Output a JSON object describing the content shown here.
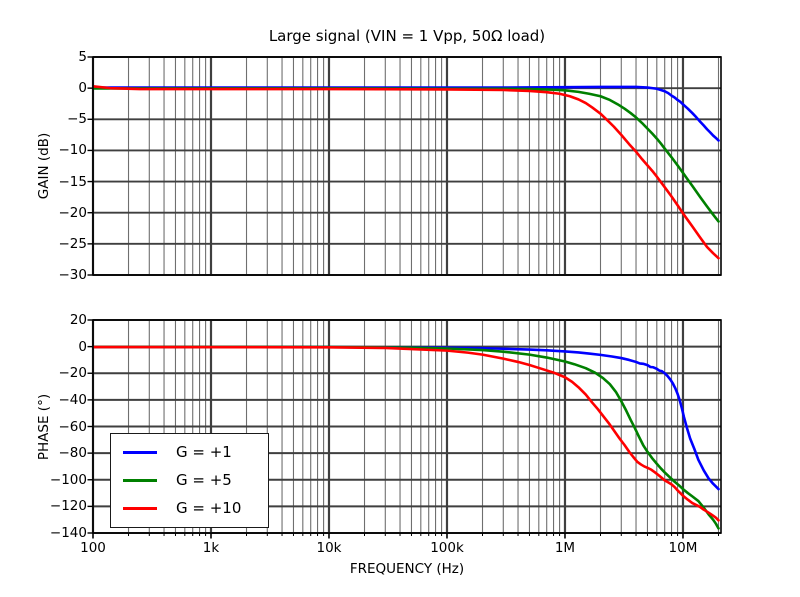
{
  "legend": {
    "position": "lower left",
    "items": [
      {
        "label": "G = +1",
        "color": "#0000ff"
      },
      {
        "label": "G = +5",
        "color": "#008000"
      },
      {
        "label": "G = +10",
        "color": "#ff0000"
      }
    ]
  },
  "colors": {
    "grid_major": "#3f3f3f",
    "grid_minor": "#6f6f6f",
    "frame": "#000000",
    "blue": "#0000ff",
    "green": "#008000",
    "red": "#ff0000"
  },
  "chart_data": [
    {
      "type": "line",
      "title": "Large signal (VIN = 1 Vpp, 50Ω load)",
      "ylabel": "GAIN (dB)",
      "xlabel": "",
      "xscale": "log",
      "grid": true,
      "show_xtick_labels": false,
      "show_xtick_marks": false,
      "xlim": [
        100,
        21000000
      ],
      "ylim": [
        -30,
        5
      ],
      "xticks": [
        {
          "value": 100,
          "label": "100"
        },
        {
          "value": 1000,
          "label": "1k"
        },
        {
          "value": 10000,
          "label": "10k"
        },
        {
          "value": 100000,
          "label": "100k"
        },
        {
          "value": 1000000,
          "label": "1M"
        },
        {
          "value": 10000000,
          "label": "10M"
        }
      ],
      "yticks": [
        {
          "value": 5,
          "label": "5"
        },
        {
          "value": 0,
          "label": "0"
        },
        {
          "value": -5,
          "label": "−5"
        },
        {
          "value": -10,
          "label": "−10"
        },
        {
          "value": -15,
          "label": "−15"
        },
        {
          "value": -20,
          "label": "−20"
        },
        {
          "value": -25,
          "label": "−25"
        },
        {
          "value": -30,
          "label": "−30"
        }
      ],
      "series": [
        {
          "name": "G = +1",
          "color": "#0000ff",
          "points": [
            [
              100,
              0.1
            ],
            [
              1000,
              0.1
            ],
            [
              10000,
              0.1
            ],
            [
              100000,
              0.1
            ],
            [
              300000,
              0.1
            ],
            [
              1000000,
              0.15
            ],
            [
              2000000,
              0.2
            ],
            [
              3000000,
              0.2
            ],
            [
              4000000,
              0.2
            ],
            [
              5000000,
              0.1
            ],
            [
              6000000,
              -0.1
            ],
            [
              6500000,
              -0.3
            ],
            [
              7000000,
              -0.5
            ],
            [
              7500000,
              -0.8
            ],
            [
              8000000,
              -1.2
            ],
            [
              8500000,
              -1.5
            ],
            [
              9000000,
              -1.9
            ],
            [
              9500000,
              -2.2
            ],
            [
              10000000,
              -2.6
            ],
            [
              11000000,
              -3.3
            ],
            [
              12000000,
              -4.0
            ],
            [
              13000000,
              -4.7
            ],
            [
              14000000,
              -5.4
            ],
            [
              15000000,
              -6.0
            ],
            [
              16000000,
              -6.6
            ],
            [
              17000000,
              -7.1
            ],
            [
              18000000,
              -7.6
            ],
            [
              19000000,
              -8.0
            ],
            [
              20000000,
              -8.4
            ]
          ]
        },
        {
          "name": "G = +5",
          "color": "#008000",
          "points": [
            [
              100,
              -0.05
            ],
            [
              1000,
              -0.05
            ],
            [
              10000,
              -0.05
            ],
            [
              100000,
              -0.1
            ],
            [
              300000,
              -0.1
            ],
            [
              500000,
              -0.15
            ],
            [
              800000,
              -0.25
            ],
            [
              1000000,
              -0.35
            ],
            [
              1300000,
              -0.6
            ],
            [
              1600000,
              -0.9
            ],
            [
              2000000,
              -1.3
            ],
            [
              2400000,
              -1.9
            ],
            [
              2800000,
              -2.6
            ],
            [
              3200000,
              -3.3
            ],
            [
              3600000,
              -4.0
            ],
            [
              4000000,
              -4.7
            ],
            [
              4500000,
              -5.6
            ],
            [
              5000000,
              -6.5
            ],
            [
              5500000,
              -7.3
            ],
            [
              6000000,
              -8.1
            ],
            [
              6500000,
              -8.9
            ],
            [
              7000000,
              -9.7
            ],
            [
              8000000,
              -11.1
            ],
            [
              9000000,
              -12.4
            ],
            [
              10000000,
              -13.6
            ],
            [
              11000000,
              -14.7
            ],
            [
              12000000,
              -15.7
            ],
            [
              14000000,
              -17.5
            ],
            [
              16000000,
              -19.0
            ],
            [
              18000000,
              -20.3
            ],
            [
              20000000,
              -21.4
            ]
          ]
        },
        {
          "name": "G = +10",
          "color": "#ff0000",
          "points": [
            [
              100,
              0.3
            ],
            [
              140,
              0
            ],
            [
              250,
              -0.15
            ],
            [
              1000,
              -0.15
            ],
            [
              10000,
              -0.15
            ],
            [
              100000,
              -0.2
            ],
            [
              300000,
              -0.3
            ],
            [
              500000,
              -0.45
            ],
            [
              700000,
              -0.65
            ],
            [
              900000,
              -0.9
            ],
            [
              1100000,
              -1.3
            ],
            [
              1300000,
              -1.8
            ],
            [
              1500000,
              -2.4
            ],
            [
              1700000,
              -3.1
            ],
            [
              2000000,
              -4.1
            ],
            [
              2300000,
              -5.2
            ],
            [
              2600000,
              -6.2
            ],
            [
              3000000,
              -7.5
            ],
            [
              3500000,
              -9.0
            ],
            [
              4000000,
              -10.2
            ],
            [
              4500000,
              -11.4
            ],
            [
              5000000,
              -12.4
            ],
            [
              5500000,
              -13.3
            ],
            [
              6000000,
              -14.2
            ],
            [
              7000000,
              -15.9
            ],
            [
              8000000,
              -17.4
            ],
            [
              9000000,
              -18.8
            ],
            [
              10000000,
              -20.1
            ],
            [
              11000000,
              -21.2
            ],
            [
              12000000,
              -22.2
            ],
            [
              14000000,
              -24.0
            ],
            [
              16000000,
              -25.5
            ],
            [
              18000000,
              -26.5
            ],
            [
              20000000,
              -27.3
            ]
          ]
        }
      ]
    },
    {
      "type": "line",
      "title": "",
      "ylabel": "PHASE (°)",
      "xlabel": "FREQUENCY (Hz)",
      "xscale": "log",
      "grid": true,
      "show_xtick_labels": true,
      "show_xtick_marks": true,
      "xlim": [
        100,
        21000000
      ],
      "ylim": [
        -140,
        20
      ],
      "xticks": [
        {
          "value": 100,
          "label": "100"
        },
        {
          "value": 1000,
          "label": "1k"
        },
        {
          "value": 10000,
          "label": "10k"
        },
        {
          "value": 100000,
          "label": "100k"
        },
        {
          "value": 1000000,
          "label": "1M"
        },
        {
          "value": 10000000,
          "label": "10M"
        }
      ],
      "yticks": [
        {
          "value": 20,
          "label": "20"
        },
        {
          "value": 0,
          "label": "0"
        },
        {
          "value": -20,
          "label": "−20"
        },
        {
          "value": -40,
          "label": "−40"
        },
        {
          "value": -60,
          "label": "−60"
        },
        {
          "value": -80,
          "label": "−80"
        },
        {
          "value": -100,
          "label": "−100"
        },
        {
          "value": -120,
          "label": "−120"
        },
        {
          "value": -140,
          "label": "−140"
        }
      ],
      "series": [
        {
          "name": "G = +1",
          "color": "#0000ff",
          "points": [
            [
              100,
              -0.3
            ],
            [
              1000,
              -0.3
            ],
            [
              10000,
              -0.4
            ],
            [
              50000,
              -0.6
            ],
            [
              100000,
              -0.8
            ],
            [
              200000,
              -1.2
            ],
            [
              300000,
              -1.6
            ],
            [
              500000,
              -2.2
            ],
            [
              700000,
              -2.8
            ],
            [
              1000000,
              -3.6
            ],
            [
              1300000,
              -4.4
            ],
            [
              1600000,
              -5.2
            ],
            [
              2000000,
              -6.2
            ],
            [
              2500000,
              -7.4
            ],
            [
              3000000,
              -8.6
            ],
            [
              3500000,
              -10.0
            ],
            [
              4000000,
              -11.5
            ],
            [
              4300000,
              -12.6
            ],
            [
              4600000,
              -12.9
            ],
            [
              5000000,
              -13.9
            ],
            [
              5300000,
              -15.3
            ],
            [
              5600000,
              -15.5
            ],
            [
              6000000,
              -16.7
            ],
            [
              6300000,
              -18.0
            ],
            [
              6600000,
              -18.4
            ],
            [
              7000000,
              -20.0
            ],
            [
              7400000,
              -22.1
            ],
            [
              7800000,
              -24.6
            ],
            [
              8200000,
              -27.6
            ],
            [
              8600000,
              -31.2
            ],
            [
              9000000,
              -35.5
            ],
            [
              9400000,
              -40.5
            ],
            [
              9800000,
              -46.5
            ],
            [
              10200000,
              -53
            ],
            [
              10800000,
              -61
            ],
            [
              11500000,
              -69
            ],
            [
              12500000,
              -77
            ],
            [
              13500000,
              -85
            ],
            [
              15000000,
              -93
            ],
            [
              16500000,
              -99
            ],
            [
              18000000,
              -103
            ],
            [
              19000000,
              -105
            ],
            [
              20000000,
              -107
            ]
          ]
        },
        {
          "name": "G = +5",
          "color": "#008000",
          "points": [
            [
              100,
              -0.2
            ],
            [
              10000,
              -0.3
            ],
            [
              50000,
              -0.8
            ],
            [
              100000,
              -1.4
            ],
            [
              200000,
              -2.6
            ],
            [
              300000,
              -3.8
            ],
            [
              500000,
              -6.0
            ],
            [
              700000,
              -8.2
            ],
            [
              1000000,
              -11.2
            ],
            [
              1200000,
              -13.2
            ],
            [
              1500000,
              -16.2
            ],
            [
              1800000,
              -19.6
            ],
            [
              2100000,
              -23.6
            ],
            [
              2400000,
              -28.2
            ],
            [
              2700000,
              -34
            ],
            [
              3000000,
              -41
            ],
            [
              3300000,
              -48
            ],
            [
              3600000,
              -55
            ],
            [
              3900000,
              -61
            ],
            [
              4200000,
              -67
            ],
            [
              4600000,
              -74
            ],
            [
              5000000,
              -79
            ],
            [
              5500000,
              -84
            ],
            [
              6000000,
              -88
            ],
            [
              6500000,
              -91.5
            ],
            [
              7000000,
              -94.5
            ],
            [
              7700000,
              -98
            ],
            [
              8500000,
              -101.5
            ],
            [
              9200000,
              -104
            ],
            [
              10000000,
              -107
            ],
            [
              11000000,
              -110
            ],
            [
              12000000,
              -112.5
            ],
            [
              13500000,
              -116
            ],
            [
              15000000,
              -121
            ],
            [
              16500000,
              -126
            ],
            [
              18000000,
              -130
            ],
            [
              19000000,
              -133
            ],
            [
              20000000,
              -136.5
            ]
          ]
        },
        {
          "name": "G = +10",
          "color": "#ff0000",
          "points": [
            [
              100,
              -0.3
            ],
            [
              10000,
              -0.5
            ],
            [
              30000,
              -1.0
            ],
            [
              100000,
              -3.0
            ],
            [
              150000,
              -4.5
            ],
            [
              200000,
              -6.0
            ],
            [
              300000,
              -9.0
            ],
            [
              400000,
              -11.5
            ],
            [
              500000,
              -13.8
            ],
            [
              600000,
              -16.0
            ],
            [
              800000,
              -19.5
            ],
            [
              1000000,
              -23
            ],
            [
              1150000,
              -26.5
            ],
            [
              1300000,
              -30.5
            ],
            [
              1500000,
              -36
            ],
            [
              1700000,
              -42
            ],
            [
              1900000,
              -47
            ],
            [
              2100000,
              -52
            ],
            [
              2350000,
              -57.5
            ],
            [
              2600000,
              -63
            ],
            [
              2900000,
              -69
            ],
            [
              3200000,
              -74
            ],
            [
              3500000,
              -79
            ],
            [
              3800000,
              -83
            ],
            [
              4100000,
              -86.5
            ],
            [
              4400000,
              -88.5
            ],
            [
              4700000,
              -90
            ],
            [
              5000000,
              -91
            ],
            [
              5400000,
              -92.5
            ],
            [
              5800000,
              -94.5
            ],
            [
              6200000,
              -96.5
            ],
            [
              6600000,
              -98.5
            ],
            [
              7000000,
              -100.5
            ],
            [
              7500000,
              -102
            ],
            [
              8000000,
              -103.5
            ],
            [
              8500000,
              -105.5
            ],
            [
              9000000,
              -108
            ],
            [
              9500000,
              -110
            ],
            [
              10000000,
              -112
            ],
            [
              11000000,
              -115
            ],
            [
              12000000,
              -117.5
            ],
            [
              13000000,
              -119
            ],
            [
              14000000,
              -120.5
            ],
            [
              15000000,
              -122.5
            ],
            [
              16000000,
              -124
            ],
            [
              17000000,
              -125.5
            ],
            [
              18000000,
              -127
            ],
            [
              19000000,
              -128.5
            ],
            [
              20000000,
              -130.5
            ]
          ]
        }
      ]
    }
  ]
}
